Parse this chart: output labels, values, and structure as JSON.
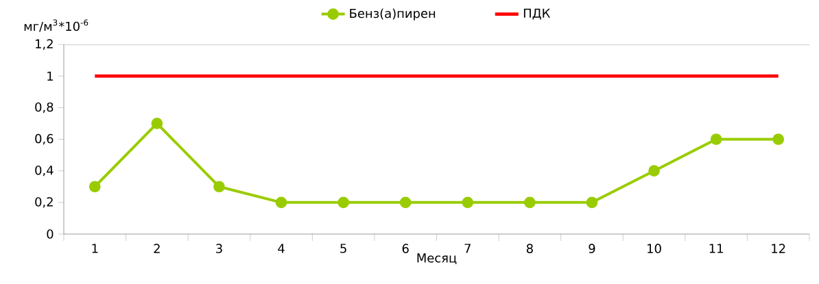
{
  "chart_data": {
    "type": "line",
    "xlabel": "Месяц",
    "ylabel": "мг/м$^{3}$*10$^{-6}$",
    "categories": [
      "1",
      "2",
      "3",
      "4",
      "5",
      "6",
      "7",
      "8",
      "9",
      "10",
      "11",
      "12"
    ],
    "series": [
      {
        "name": "Бенз(а)пирен",
        "color": "#99cc00",
        "marker": "circle",
        "values": [
          0.3,
          0.7,
          0.3,
          0.2,
          0.2,
          0.2,
          0.2,
          0.2,
          0.2,
          0.4,
          0.6,
          0.6
        ]
      },
      {
        "name": "ПДК",
        "color": "#ff0000",
        "marker": "none",
        "values": [
          1,
          1,
          1,
          1,
          1,
          1,
          1,
          1,
          1,
          1,
          1,
          1
        ]
      }
    ],
    "ylim": [
      0,
      1.2
    ],
    "yticks": [
      {
        "value": 0,
        "label": "0"
      },
      {
        "value": 0.2,
        "label": "0,2"
      },
      {
        "value": 0.4,
        "label": "0,4"
      },
      {
        "value": 0.6,
        "label": "0,6"
      },
      {
        "value": 0.8,
        "label": "0,8"
      },
      {
        "value": 1,
        "label": "1"
      },
      {
        "value": 1.2,
        "label": "1,2"
      }
    ],
    "legend": "top",
    "line_style": "solid"
  }
}
